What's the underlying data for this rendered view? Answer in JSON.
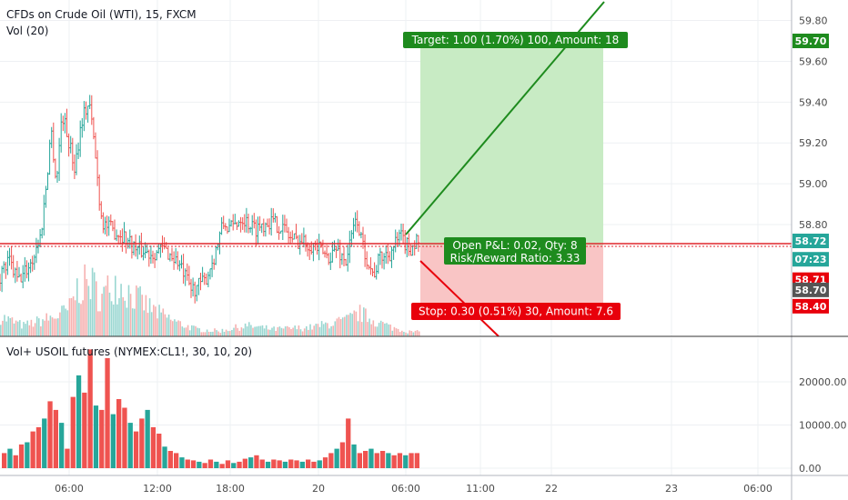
{
  "header": {
    "title": "CFDs on Crude Oil (WTI), 15, FXCM",
    "vol_label": "Vol (20)",
    "indicator_label": "Vol+ USOIL futures (NYMEX:CL1!, 30, 10, 20)"
  },
  "colors": {
    "up": "#26a69a",
    "down": "#ef5350",
    "target_zone": "#c8ebc4",
    "stop_zone": "#f9c5c5",
    "target_label": "#1e8b1e",
    "stop_label": "#e8000b",
    "entry_line": "#e0262d",
    "axis_text": "#4a4a4a"
  },
  "price_axis": {
    "ticks": [
      "59.80",
      "59.60",
      "59.40",
      "59.20",
      "59.00",
      "58.80"
    ],
    "tick_values": [
      59.8,
      59.6,
      59.4,
      59.2,
      59.0,
      58.8
    ],
    "range": [
      58.34,
      59.92
    ],
    "badges": [
      {
        "text": "59.70",
        "value": 59.7,
        "color": "#1e8b1e"
      },
      {
        "text": "58.72",
        "value": 58.72,
        "color": "#26a69a"
      },
      {
        "text": "07:23",
        "value": 58.63,
        "color": "#26a69a"
      },
      {
        "text": "58.71",
        "value": 58.53,
        "color": "#e8000b"
      },
      {
        "text": "58.70",
        "value": 58.48,
        "color": "#555555"
      },
      {
        "text": "58.40",
        "value": 58.4,
        "color": "#e8000b"
      }
    ]
  },
  "volume_axis": {
    "ticks": [
      "20000.00",
      "10000.00",
      "0.00"
    ],
    "tick_values": [
      20000,
      10000,
      0
    ],
    "range": [
      0,
      29000
    ]
  },
  "time_axis": {
    "labels": [
      "06:00",
      "12:00",
      "18:00",
      "20",
      "06:00",
      "11:00",
      "22",
      "23",
      "06:00"
    ]
  },
  "position": {
    "target_label": "Target: 1.00 (1.70%) 100, Amount: 18",
    "stop_label": "Stop: 0.30 (0.51%) 30, Amount: 7.6",
    "pnl_label": "Open P&L: 0.02, Qty: 8",
    "rr_label": "Risk/Reward Ratio: 3.33",
    "entry": 58.7,
    "target": 59.7,
    "stop": 58.4
  },
  "chart_data": [
    {
      "type": "candlestick",
      "title": "CFDs on Crude Oil (WTI), 15, FXCM",
      "ylim": [
        58.34,
        59.92
      ],
      "last_price": 58.72,
      "anchors": [
        [
          0,
          58.55
        ],
        [
          10,
          58.62
        ],
        [
          20,
          58.52
        ],
        [
          35,
          58.62
        ],
        [
          45,
          58.75
        ],
        [
          52,
          59.05
        ],
        [
          56,
          59.28
        ],
        [
          62,
          59.0
        ],
        [
          68,
          59.35
        ],
        [
          75,
          59.22
        ],
        [
          82,
          59.08
        ],
        [
          90,
          59.32
        ],
        [
          98,
          59.4
        ],
        [
          104,
          59.18
        ],
        [
          108,
          58.98
        ],
        [
          112,
          58.82
        ],
        [
          120,
          58.78
        ],
        [
          135,
          58.75
        ],
        [
          150,
          58.68
        ],
        [
          165,
          58.66
        ],
        [
          180,
          58.68
        ],
        [
          195,
          58.62
        ],
        [
          210,
          58.48
        ],
        [
          225,
          58.52
        ],
        [
          235,
          58.64
        ],
        [
          245,
          58.8
        ],
        [
          255,
          58.78
        ],
        [
          265,
          58.84
        ],
        [
          280,
          58.78
        ],
        [
          295,
          58.82
        ],
        [
          310,
          58.79
        ],
        [
          320,
          58.73
        ],
        [
          330,
          58.72
        ],
        [
          345,
          58.7
        ],
        [
          360,
          58.64
        ],
        [
          370,
          58.68
        ],
        [
          380,
          58.62
        ],
        [
          392,
          58.84
        ],
        [
          398,
          58.7
        ],
        [
          405,
          58.62
        ],
        [
          410,
          58.55
        ],
        [
          418,
          58.64
        ],
        [
          428,
          58.66
        ],
        [
          440,
          58.74
        ],
        [
          450,
          58.68
        ],
        [
          458,
          58.72
        ]
      ],
      "x_start": 0,
      "x_end": 462,
      "step": 2.1
    },
    {
      "type": "bar",
      "title": "Vol (20)",
      "ylim": [
        0,
        1
      ],
      "anchors": [
        [
          0,
          0.22
        ],
        [
          25,
          0.12
        ],
        [
          45,
          0.18
        ],
        [
          60,
          0.22
        ],
        [
          75,
          0.3
        ],
        [
          85,
          0.55
        ],
        [
          100,
          0.6
        ],
        [
          110,
          0.42
        ],
        [
          125,
          0.62
        ],
        [
          140,
          0.5
        ],
        [
          160,
          0.35
        ],
        [
          175,
          0.25
        ],
        [
          195,
          0.15
        ],
        [
          215,
          0.08
        ],
        [
          240,
          0.06
        ],
        [
          270,
          0.12
        ],
        [
          300,
          0.08
        ],
        [
          340,
          0.1
        ],
        [
          380,
          0.18
        ],
        [
          395,
          0.26
        ],
        [
          410,
          0.18
        ],
        [
          430,
          0.1
        ],
        [
          450,
          0.05
        ],
        [
          462,
          0.05
        ]
      ]
    },
    {
      "type": "bar",
      "title": "Vol+ USOIL futures (NYMEX:CL1!, 30, 10, 20)",
      "ylim": [
        0,
        29000
      ],
      "values": [
        3500,
        4500,
        3000,
        5500,
        6000,
        8500,
        9500,
        11500,
        15500,
        13500,
        10500,
        4500,
        16500,
        21500,
        17500,
        27500,
        14500,
        13500,
        25500,
        12500,
        16000,
        14000,
        10500,
        8500,
        11500,
        13500,
        9500,
        8000,
        5000,
        4000,
        3500,
        2500,
        2000,
        1800,
        1500,
        1200,
        2000,
        1500,
        1000,
        1800,
        1200,
        1500,
        2200,
        2500,
        3000,
        2000,
        1500,
        2000,
        1800,
        1500,
        2000,
        1800,
        1500,
        2000,
        1500,
        1800,
        2500,
        3500,
        4500,
        6000,
        11500,
        5500,
        3500,
        4000,
        4500,
        3500,
        4000,
        3500,
        3000,
        3500,
        3000,
        3500,
        3500
      ],
      "x_start": 2,
      "x_end": 462
    }
  ]
}
